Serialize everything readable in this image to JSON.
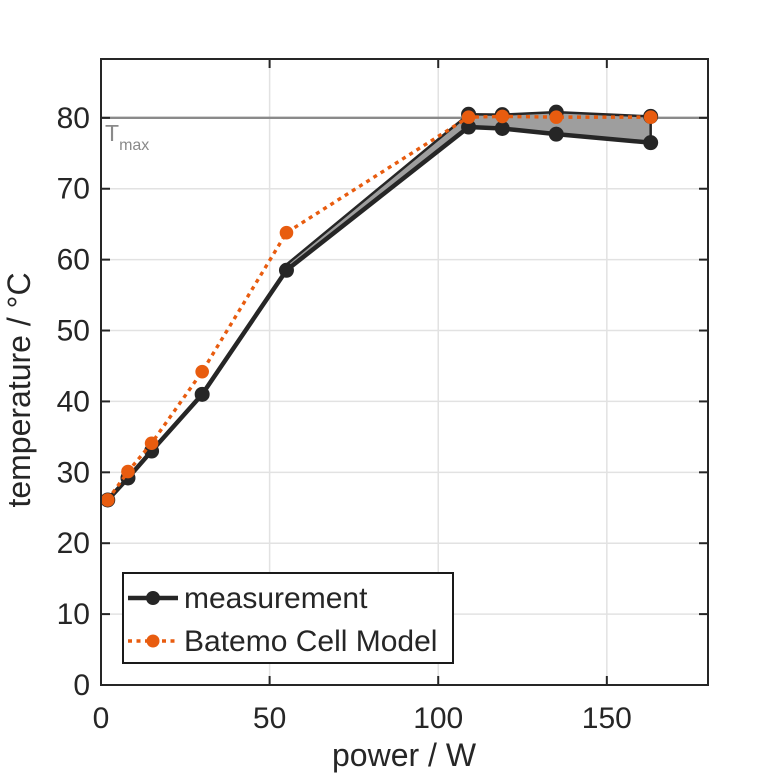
{
  "chart_data": {
    "type": "line",
    "title": "",
    "xlabel": "power / W",
    "ylabel": "temperature / °C",
    "xlim": [
      0,
      180
    ],
    "ylim": [
      0,
      88.3
    ],
    "xticks": [
      0,
      50,
      100,
      150
    ],
    "yticks": [
      0,
      10,
      20,
      30,
      40,
      50,
      60,
      70,
      80
    ],
    "grid": true,
    "legend_position": "southwest",
    "x": [
      2,
      8,
      15,
      30,
      55,
      109,
      119,
      135,
      163
    ],
    "series": [
      {
        "name": "measurement",
        "color": "#262626",
        "line_style": "solid",
        "marker": "circle",
        "values": [
          26.1,
          29.2,
          33.0,
          41.0,
          58.5,
          78.7,
          78.5,
          77.7,
          76.5
        ]
      },
      {
        "name": "Batemo Cell Model",
        "color": "#E85C0F",
        "line_style": "dotted",
        "marker": "circle",
        "values": [
          26.1,
          30.1,
          34.1,
          44.2,
          63.8,
          80.1,
          80.2,
          80.1,
          80.1
        ]
      }
    ],
    "deviation_band": {
      "x": [
        55,
        109,
        119,
        135,
        163
      ],
      "upper": [
        59.3,
        80.5,
        80.45,
        80.8,
        80.2
      ],
      "lower": [
        58.5,
        78.7,
        78.5,
        77.7,
        76.5
      ],
      "fill_color": "#9E9E9E",
      "edge_color": "#262626",
      "upper_marker_points": [
        [
          109,
          80.5
        ],
        [
          119,
          80.45
        ],
        [
          135,
          80.8
        ],
        [
          163,
          80.2
        ]
      ]
    },
    "reference_line": {
      "y": 80,
      "label_main": "T",
      "label_sub": "max",
      "color": "#8A8A8A"
    }
  },
  "axes_style": {
    "grid_color": "#E2E2E2",
    "axis_color": "#262626",
    "background": "#FFFFFF"
  }
}
